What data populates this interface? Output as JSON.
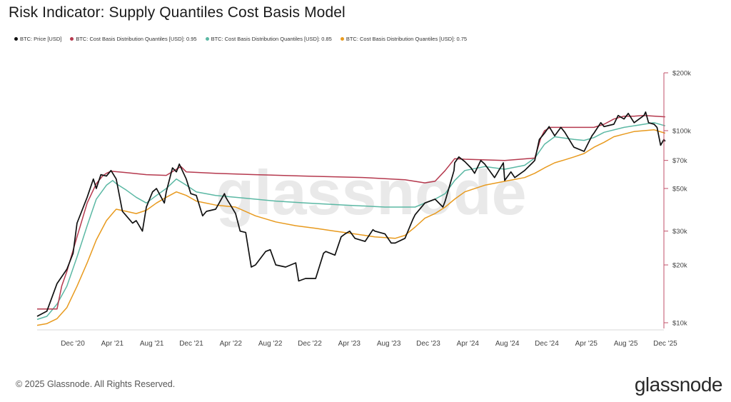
{
  "title": "Risk Indicator: Supply Quantiles Cost Basis Model",
  "legend": [
    {
      "label": "BTC: Price [USD]",
      "color": "#111111"
    },
    {
      "label": "BTC: Cost Basis Distribution Quantiles [USD]: 0.95",
      "color": "#b5394e"
    },
    {
      "label": "BTC: Cost Basis Distribution Quantiles [USD]: 0.85",
      "color": "#5bb8a4"
    },
    {
      "label": "BTC: Cost Basis Distribution Quantiles [USD]: 0.75",
      "color": "#e89a1e"
    }
  ],
  "watermark": "glassnode",
  "footer": {
    "copyright": "© 2025 Glassnode. All Rights Reserved.",
    "logo": "glassnode"
  },
  "chart_data": {
    "type": "line",
    "title": "Risk Indicator: Supply Quantiles Cost Basis Model",
    "x_tick_labels": [
      "Dec '20",
      "Apr '21",
      "Aug '21",
      "Dec '21",
      "Apr '22",
      "Aug '22",
      "Dec '22",
      "Apr '23",
      "Aug '23",
      "Dec '23",
      "Apr '24",
      "Aug '24",
      "Dec '24",
      "Apr '25",
      "Aug '25",
      "Dec '25"
    ],
    "y_scale": "log",
    "y_ticks": [
      10000,
      20000,
      30000,
      50000,
      70000,
      100000,
      200000
    ],
    "y_tick_labels": [
      "$10k",
      "$20k",
      "$30k",
      "$50k",
      "$70k",
      "$100k",
      "$200k"
    ],
    "ylim": [
      9500,
      200000
    ],
    "x_range": [
      "2020-09",
      "2025-12"
    ],
    "grid": false,
    "legend_position": "top",
    "series": [
      {
        "name": "BTC: Price [USD]",
        "color": "#111111",
        "points": [
          [
            "2020-09",
            10800
          ],
          [
            "2020-10",
            11500
          ],
          [
            "2020-11",
            16000
          ],
          [
            "2020-12",
            19000
          ],
          [
            "2020-12-20",
            23000
          ],
          [
            "2021-01",
            33000
          ],
          [
            "2021-02",
            45000
          ],
          [
            "2021-02-20",
            56000
          ],
          [
            "2021-03",
            50000
          ],
          [
            "2021-03-15",
            59000
          ],
          [
            "2021-04",
            58000
          ],
          [
            "2021-04-15",
            62000
          ],
          [
            "2021-05",
            56000
          ],
          [
            "2021-05-20",
            38000
          ],
          [
            "2021-06",
            36000
          ],
          [
            "2021-06-20",
            33000
          ],
          [
            "2021-07",
            34000
          ],
          [
            "2021-07-20",
            30000
          ],
          [
            "2021-08",
            40000
          ],
          [
            "2021-08-20",
            48000
          ],
          [
            "2021-09",
            50000
          ],
          [
            "2021-09-25",
            42000
          ],
          [
            "2021-10",
            48000
          ],
          [
            "2021-10-20",
            64000
          ],
          [
            "2021-11",
            61000
          ],
          [
            "2021-11-10",
            67000
          ],
          [
            "2021-12",
            56000
          ],
          [
            "2021-12-15",
            47000
          ],
          [
            "2022-01",
            46000
          ],
          [
            "2022-01-20",
            36000
          ],
          [
            "2022-02",
            38000
          ],
          [
            "2022-03",
            39000
          ],
          [
            "2022-03-28",
            47000
          ],
          [
            "2022-04",
            45000
          ],
          [
            "2022-05",
            37000
          ],
          [
            "2022-05-15",
            30000
          ],
          [
            "2022-06",
            29500
          ],
          [
            "2022-06-18",
            19500
          ],
          [
            "2022-07",
            20000
          ],
          [
            "2022-08",
            23500
          ],
          [
            "2022-08-15",
            24000
          ],
          [
            "2022-09",
            20000
          ],
          [
            "2022-10",
            19500
          ],
          [
            "2022-11",
            20500
          ],
          [
            "2022-11-10",
            16500
          ],
          [
            "2022-12",
            17000
          ],
          [
            "2023-01",
            17000
          ],
          [
            "2023-01-25",
            23000
          ],
          [
            "2023-02",
            23500
          ],
          [
            "2023-03",
            22500
          ],
          [
            "2023-03-20",
            28000
          ],
          [
            "2023-04",
            29000
          ],
          [
            "2023-04-15",
            30000
          ],
          [
            "2023-05",
            27500
          ],
          [
            "2023-06",
            26500
          ],
          [
            "2023-06-25",
            30500
          ],
          [
            "2023-07",
            30000
          ],
          [
            "2023-08",
            29000
          ],
          [
            "2023-08-20",
            26000
          ],
          [
            "2023-09",
            26000
          ],
          [
            "2023-10",
            27500
          ],
          [
            "2023-10-25",
            34500
          ],
          [
            "2023-11",
            36500
          ],
          [
            "2023-12",
            42000
          ],
          [
            "2024-01",
            44000
          ],
          [
            "2024-01-25",
            40000
          ],
          [
            "2024-02",
            43000
          ],
          [
            "2024-02-28",
            62000
          ],
          [
            "2024-03",
            68000
          ],
          [
            "2024-03-14",
            73000
          ],
          [
            "2024-04",
            69000
          ],
          [
            "2024-04-20",
            64000
          ],
          [
            "2024-05",
            60000
          ],
          [
            "2024-05-20",
            70000
          ],
          [
            "2024-06",
            67000
          ],
          [
            "2024-07",
            57000
          ],
          [
            "2024-07-28",
            68000
          ],
          [
            "2024-08",
            55000
          ],
          [
            "2024-08-20",
            61000
          ],
          [
            "2024-09",
            57000
          ],
          [
            "2024-10",
            62000
          ],
          [
            "2024-10-25",
            68000
          ],
          [
            "2024-11",
            70000
          ],
          [
            "2024-11-15",
            90000
          ],
          [
            "2024-12",
            97000
          ],
          [
            "2024-12-15",
            105000
          ],
          [
            "2025-01",
            94000
          ],
          [
            "2025-01-20",
            104000
          ],
          [
            "2025-02",
            98000
          ],
          [
            "2025-02-25",
            84000
          ],
          [
            "2025-03",
            82000
          ],
          [
            "2025-04",
            78000
          ],
          [
            "2025-04-25",
            94000
          ],
          [
            "2025-05",
            97000
          ],
          [
            "2025-05-22",
            110000
          ],
          [
            "2025-06",
            105000
          ],
          [
            "2025-07",
            108000
          ],
          [
            "2025-07-14",
            120000
          ],
          [
            "2025-08",
            115000
          ],
          [
            "2025-08-14",
            123000
          ],
          [
            "2025-09",
            110000
          ],
          [
            "2025-10",
            120000
          ],
          [
            "2025-10-06",
            125000
          ],
          [
            "2025-10-15",
            110000
          ],
          [
            "2025-11",
            108000
          ],
          [
            "2025-11-10",
            104000
          ],
          [
            "2025-11-21",
            84000
          ],
          [
            "2025-12",
            90000
          ],
          [
            "2025-12-05",
            88000
          ]
        ]
      },
      {
        "name": "BTC: Cost Basis Distribution Quantiles [USD]: 0.95",
        "color": "#b5394e",
        "points": [
          [
            "2020-09",
            11800
          ],
          [
            "2020-11",
            11800
          ],
          [
            "2020-11-15",
            15500
          ],
          [
            "2020-12",
            18500
          ],
          [
            "2021-01",
            28000
          ],
          [
            "2021-02",
            42000
          ],
          [
            "2021-03",
            53000
          ],
          [
            "2021-03-20",
            58000
          ],
          [
            "2021-04",
            60000
          ],
          [
            "2021-04-15",
            61500
          ],
          [
            "2021-06",
            60500
          ],
          [
            "2021-08",
            59000
          ],
          [
            "2021-10",
            58500
          ],
          [
            "2021-11",
            63000
          ],
          [
            "2021-11-15",
            65000
          ],
          [
            "2021-12",
            61000
          ],
          [
            "2022-03",
            60000
          ],
          [
            "2022-07",
            59000
          ],
          [
            "2022-12",
            58000
          ],
          [
            "2023-06",
            57000
          ],
          [
            "2023-10",
            55500
          ],
          [
            "2023-12",
            53500
          ],
          [
            "2024-01",
            54500
          ],
          [
            "2024-02",
            62000
          ],
          [
            "2024-03",
            71500
          ],
          [
            "2024-04",
            71000
          ],
          [
            "2024-08",
            70000
          ],
          [
            "2024-11",
            72000
          ],
          [
            "2024-11-20",
            92000
          ],
          [
            "2024-12",
            100000
          ],
          [
            "2024-12-20",
            104000
          ],
          [
            "2025-01",
            104000
          ],
          [
            "2025-05",
            104000
          ],
          [
            "2025-06",
            108000
          ],
          [
            "2025-07",
            115000
          ],
          [
            "2025-08",
            119000
          ],
          [
            "2025-09",
            119000
          ],
          [
            "2025-10",
            120000
          ],
          [
            "2025-12-05",
            118000
          ]
        ]
      },
      {
        "name": "BTC: Cost Basis Distribution Quantiles [USD]: 0.85",
        "color": "#5bb8a4",
        "points": [
          [
            "2020-09",
            10400
          ],
          [
            "2020-10",
            10800
          ],
          [
            "2020-11",
            12500
          ],
          [
            "2020-12",
            15500
          ],
          [
            "2021-01",
            22000
          ],
          [
            "2021-02",
            32000
          ],
          [
            "2021-03",
            44000
          ],
          [
            "2021-04",
            52000
          ],
          [
            "2021-04-20",
            55000
          ],
          [
            "2021-05",
            53000
          ],
          [
            "2021-06",
            49000
          ],
          [
            "2021-07",
            45000
          ],
          [
            "2021-08",
            42000
          ],
          [
            "2021-09",
            46000
          ],
          [
            "2021-10",
            50000
          ],
          [
            "2021-11",
            56000
          ],
          [
            "2021-12",
            52000
          ],
          [
            "2022-01",
            48000
          ],
          [
            "2022-03",
            46000
          ],
          [
            "2022-06",
            44500
          ],
          [
            "2022-09",
            43000
          ],
          [
            "2022-12",
            42000
          ],
          [
            "2023-04",
            41000
          ],
          [
            "2023-08",
            40000
          ],
          [
            "2023-11",
            40000
          ],
          [
            "2023-12",
            42000
          ],
          [
            "2024-01",
            44000
          ],
          [
            "2024-02",
            47000
          ],
          [
            "2024-03",
            55000
          ],
          [
            "2024-04",
            62000
          ],
          [
            "2024-06",
            65000
          ],
          [
            "2024-08",
            63000
          ],
          [
            "2024-10",
            66000
          ],
          [
            "2024-11",
            72000
          ],
          [
            "2024-12",
            85000
          ],
          [
            "2025-01",
            93000
          ],
          [
            "2025-03",
            90000
          ],
          [
            "2025-04",
            89000
          ],
          [
            "2025-05",
            92000
          ],
          [
            "2025-06",
            98000
          ],
          [
            "2025-08",
            104000
          ],
          [
            "2025-10",
            108000
          ],
          [
            "2025-11",
            110000
          ],
          [
            "2025-12-05",
            106000
          ]
        ]
      },
      {
        "name": "BTC: Cost Basis Distribution Quantiles [USD]: 0.75",
        "color": "#e89a1e",
        "points": [
          [
            "2020-09",
            9700
          ],
          [
            "2020-10",
            9900
          ],
          [
            "2020-11",
            10500
          ],
          [
            "2020-12",
            12000
          ],
          [
            "2021-01",
            15500
          ],
          [
            "2021-02",
            20500
          ],
          [
            "2021-03",
            27000
          ],
          [
            "2021-04",
            34000
          ],
          [
            "2021-04-25",
            38000
          ],
          [
            "2021-05",
            39000
          ],
          [
            "2021-06",
            38000
          ],
          [
            "2021-07",
            37000
          ],
          [
            "2021-08",
            38500
          ],
          [
            "2021-09",
            42000
          ],
          [
            "2021-10",
            45000
          ],
          [
            "2021-11",
            48000
          ],
          [
            "2021-12",
            46000
          ],
          [
            "2022-01",
            43000
          ],
          [
            "2022-03",
            41000
          ],
          [
            "2022-05",
            40000
          ],
          [
            "2022-07",
            36000
          ],
          [
            "2022-09",
            33500
          ],
          [
            "2022-11",
            32000
          ],
          [
            "2023-01",
            31000
          ],
          [
            "2023-03",
            30000
          ],
          [
            "2023-05",
            29000
          ],
          [
            "2023-07",
            28000
          ],
          [
            "2023-09",
            27500
          ],
          [
            "2023-10",
            28500
          ],
          [
            "2023-11",
            31500
          ],
          [
            "2023-12",
            35000
          ],
          [
            "2024-01",
            37000
          ],
          [
            "2024-02",
            40000
          ],
          [
            "2024-03",
            44000
          ],
          [
            "2024-04",
            48000
          ],
          [
            "2024-06",
            52000
          ],
          [
            "2024-08",
            54500
          ],
          [
            "2024-10",
            57000
          ],
          [
            "2024-11",
            60000
          ],
          [
            "2024-12",
            64000
          ],
          [
            "2025-01",
            68000
          ],
          [
            "2025-02",
            70500
          ],
          [
            "2025-03",
            73000
          ],
          [
            "2025-04",
            76000
          ],
          [
            "2025-05",
            82000
          ],
          [
            "2025-06",
            87000
          ],
          [
            "2025-07",
            93000
          ],
          [
            "2025-08",
            96000
          ],
          [
            "2025-09",
            99000
          ],
          [
            "2025-10",
            100000
          ],
          [
            "2025-11",
            101000
          ],
          [
            "2025-12-05",
            97000
          ]
        ]
      }
    ]
  }
}
